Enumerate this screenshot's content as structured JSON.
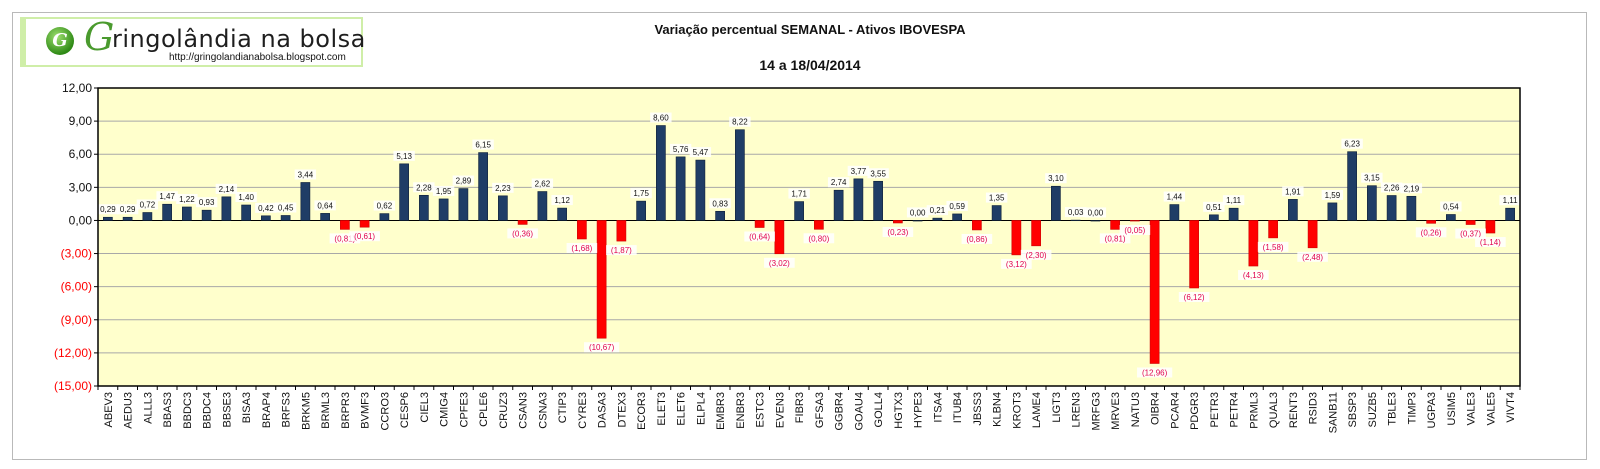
{
  "logo": {
    "brand": "ringolândia na bolsa",
    "brand_initial": "G",
    "url": "http://gringolandianabolsa.blogspot.com"
  },
  "chart_data": {
    "type": "bar",
    "title": "Variação  percentual SEMANAL  - Ativos IBOVESPA",
    "subtitle": "14 a 18/04/2014",
    "xlabel": "",
    "ylabel": "",
    "ylim": [
      -15,
      12
    ],
    "yticks": [
      12,
      9,
      6,
      3,
      0,
      -3,
      -6,
      -9,
      -12,
      -15
    ],
    "ytick_labels": [
      "12,00",
      "9,00",
      "6,00",
      "3,00",
      "0,00",
      "(3,00)",
      "(6,00)",
      "(9,00)",
      "(12,00)",
      "(15,00)"
    ],
    "grid": true,
    "legend": "none",
    "colors": {
      "positive": "#1f3d66",
      "negative": "#ff0000",
      "plot_bg": "#ffffcc",
      "negative_text": "#e0004e"
    },
    "categories": [
      "ABEV3",
      "AEDU3",
      "ALLL3",
      "BBAS3",
      "BBDC3",
      "BBDC4",
      "BBSE3",
      "BISA3",
      "BRAP4",
      "BRFS3",
      "BRKM5",
      "BRML3",
      "BRPR3",
      "BVMF3",
      "CCRO3",
      "CESP6",
      "CIEL3",
      "CMIG4",
      "CPFE3",
      "CPLE6",
      "CRUZ3",
      "CSAN3",
      "CSNA3",
      "CTIP3",
      "CYRE3",
      "DASA3",
      "DTEX3",
      "ECOR3",
      "ELET3",
      "ELET6",
      "ELPL4",
      "EMBR3",
      "ENBR3",
      "ESTC3",
      "EVEN3",
      "FIBR3",
      "GFSA3",
      "GGBR4",
      "GOAU4",
      "GOLL4",
      "HGTX3",
      "HYPE3",
      "ITSA4",
      "ITUB4",
      "JBSS3",
      "KLBN4",
      "KROT3",
      "LAME4",
      "LIGT3",
      "LREN3",
      "MRFG3",
      "MRVE3",
      "NATU3",
      "OIBR4",
      "PCAR4",
      "PDGR3",
      "PETR3",
      "PETR4",
      "PRML3",
      "QUAL3",
      "RENT3",
      "RSID3",
      "SANB11",
      "SBSP3",
      "SUZB5",
      "TBLE3",
      "TIMP3",
      "UGPA3",
      "USIM5",
      "VALE3",
      "VALE5",
      "VIVT4"
    ],
    "values": [
      0.29,
      0.29,
      0.72,
      1.47,
      1.22,
      0.93,
      2.14,
      1.4,
      0.42,
      0.45,
      3.44,
      0.64,
      -0.81,
      -0.61,
      0.62,
      5.13,
      2.28,
      1.95,
      2.89,
      6.15,
      2.23,
      -0.36,
      2.62,
      1.12,
      -1.68,
      -10.67,
      -1.87,
      1.75,
      8.6,
      5.76,
      5.47,
      0.83,
      8.22,
      -0.64,
      -3.02,
      1.71,
      -0.8,
      2.74,
      3.77,
      3.55,
      -0.23,
      0.0,
      0.21,
      0.59,
      -0.86,
      1.35,
      -3.12,
      -2.3,
      3.1,
      0.03,
      0.0,
      -0.81,
      -0.05,
      -12.96,
      1.44,
      -6.12,
      0.51,
      1.11,
      -4.13,
      -1.58,
      1.91,
      -2.48,
      1.59,
      6.23,
      3.15,
      2.26,
      2.19,
      -0.26,
      0.54,
      -0.37,
      -1.14,
      1.11
    ],
    "data_labels": [
      "0,29",
      "0,29",
      "0,72",
      "1,47",
      "1,22",
      "0,93",
      "2,14",
      "1,40",
      "0,42",
      "0,45",
      "3,44",
      "0,64",
      "(0,81)",
      "(0,61)",
      "0,62",
      "5,13",
      "2,28",
      "1,95",
      "2,89",
      "6,15",
      "2,23",
      "(0,36)",
      "2,62",
      "1,12",
      "(1,68)",
      "(10,67)",
      "(1,87)",
      "1,75",
      "8,60",
      "5,76",
      "5,47",
      "0,83",
      "8,22",
      "(0,64)",
      "(3,02)",
      "1,71",
      "(0,80)",
      "2,74",
      "3,77",
      "3,55",
      "(0,23)",
      "0,00",
      "0,21",
      "0,59",
      "(0,86)",
      "1,35",
      "(3,12)",
      "(2,30)",
      "3,10",
      "0,03",
      "0,00",
      "(0,81)",
      "(0,05)",
      "(12,96)",
      "1,44",
      "(6,12)",
      "0,51",
      "1,11",
      "(4,13)",
      "(1,58)",
      "1,91",
      "(2,48)",
      "1,59",
      "6,23",
      "3,15",
      "2,26",
      "2,19",
      "(0,26)",
      "0,54",
      "(0,37)",
      "(1,14)",
      "1,11"
    ]
  }
}
